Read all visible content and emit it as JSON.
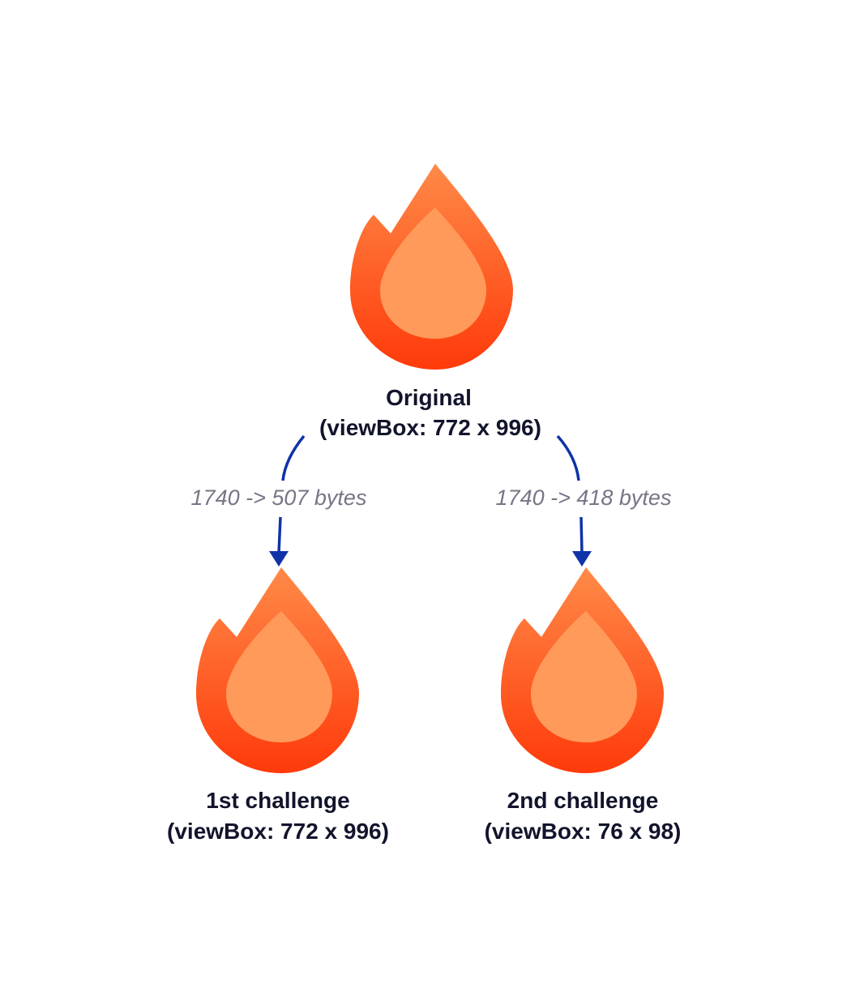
{
  "colors": {
    "flame_outer_top": "#ff8a48",
    "flame_outer_bottom": "#ff3a0a",
    "flame_inner": "#ff9a5a",
    "label_text": "#12142c",
    "arrow": "#0f33a8",
    "arrow_label_text": "#767687"
  },
  "nodes": {
    "original": {
      "icon": "flame-icon",
      "title": "Original",
      "subtitle": "(viewBox: 772 x 996)"
    },
    "first": {
      "icon": "flame-icon",
      "title": "1st challenge",
      "subtitle": "(viewBox: 772 x 996)"
    },
    "second": {
      "icon": "flame-icon",
      "title": "2nd challenge",
      "subtitle": "(viewBox: 76 x 98)"
    }
  },
  "edges": {
    "to_first": {
      "label": "1740 -> 507 bytes"
    },
    "to_second": {
      "label": "1740 -> 418 bytes"
    }
  }
}
